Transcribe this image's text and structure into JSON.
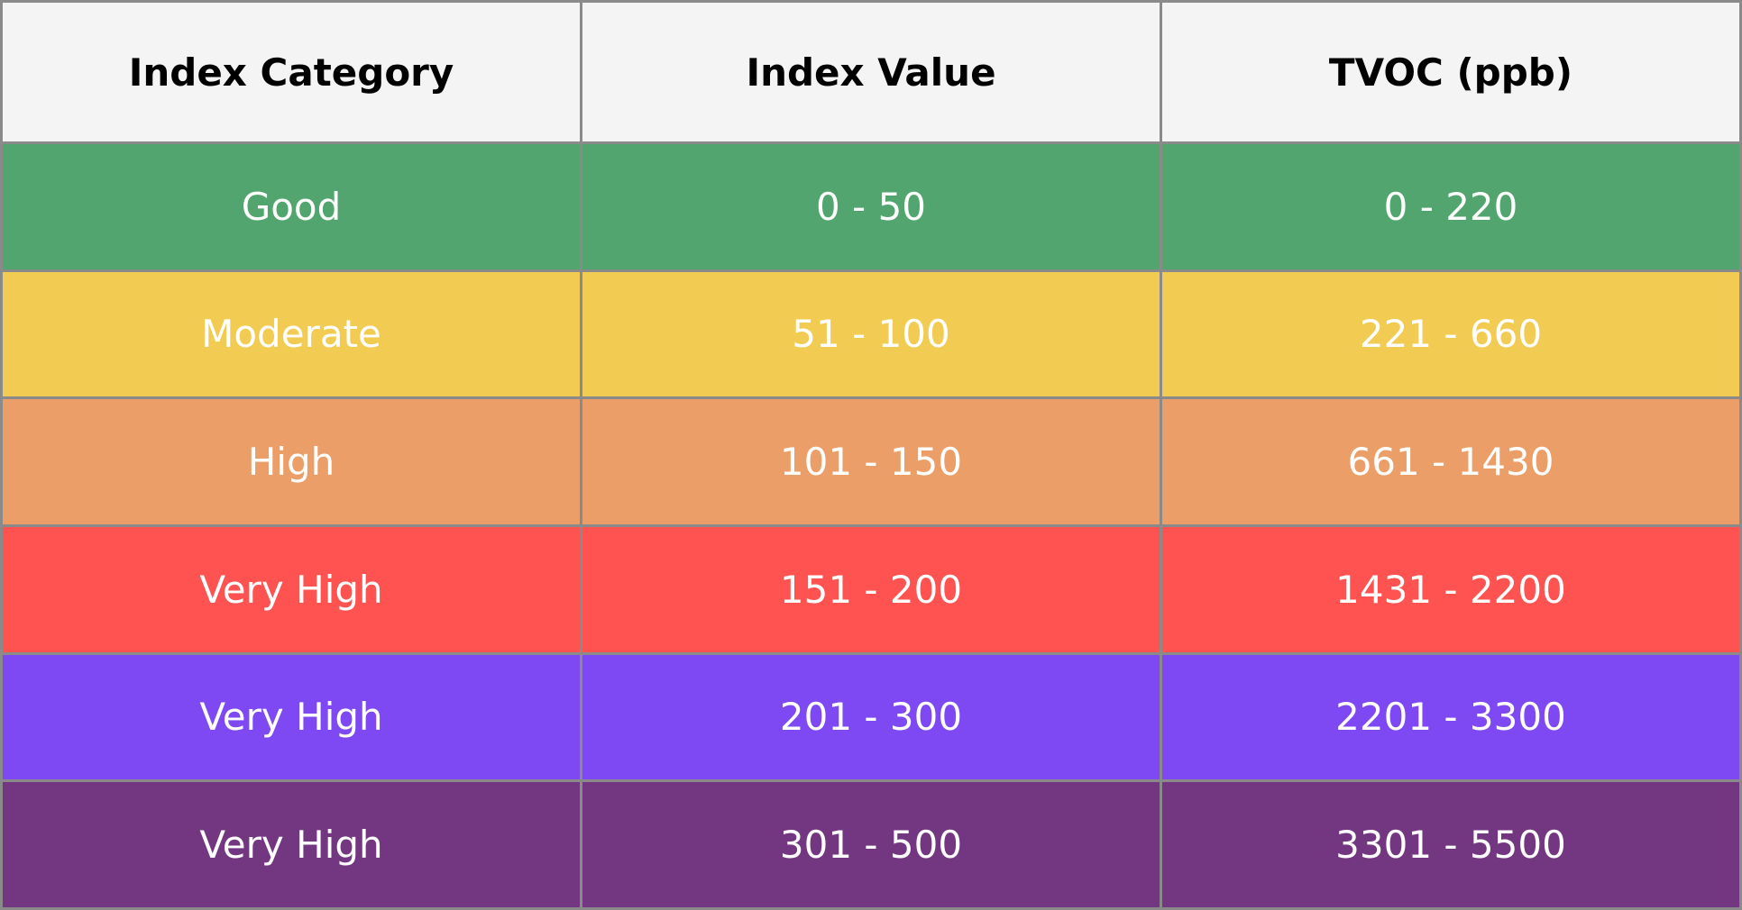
{
  "table": {
    "header": [
      "Index Category",
      "Index Value",
      "TVOC (ppb)"
    ],
    "rows": [
      [
        "Good",
        "0 - 50",
        "0 - 220"
      ],
      [
        "Moderate",
        "51 - 100",
        "221 - 660"
      ],
      [
        "High",
        "101 - 150",
        "661 - 1430"
      ],
      [
        "Very High",
        "151 - 200",
        "1431 - 2200"
      ],
      [
        "Very High",
        "201 - 300",
        "2201 - 3300"
      ],
      [
        "Very High",
        "301 - 500",
        "3301 - 5500"
      ]
    ]
  }
}
